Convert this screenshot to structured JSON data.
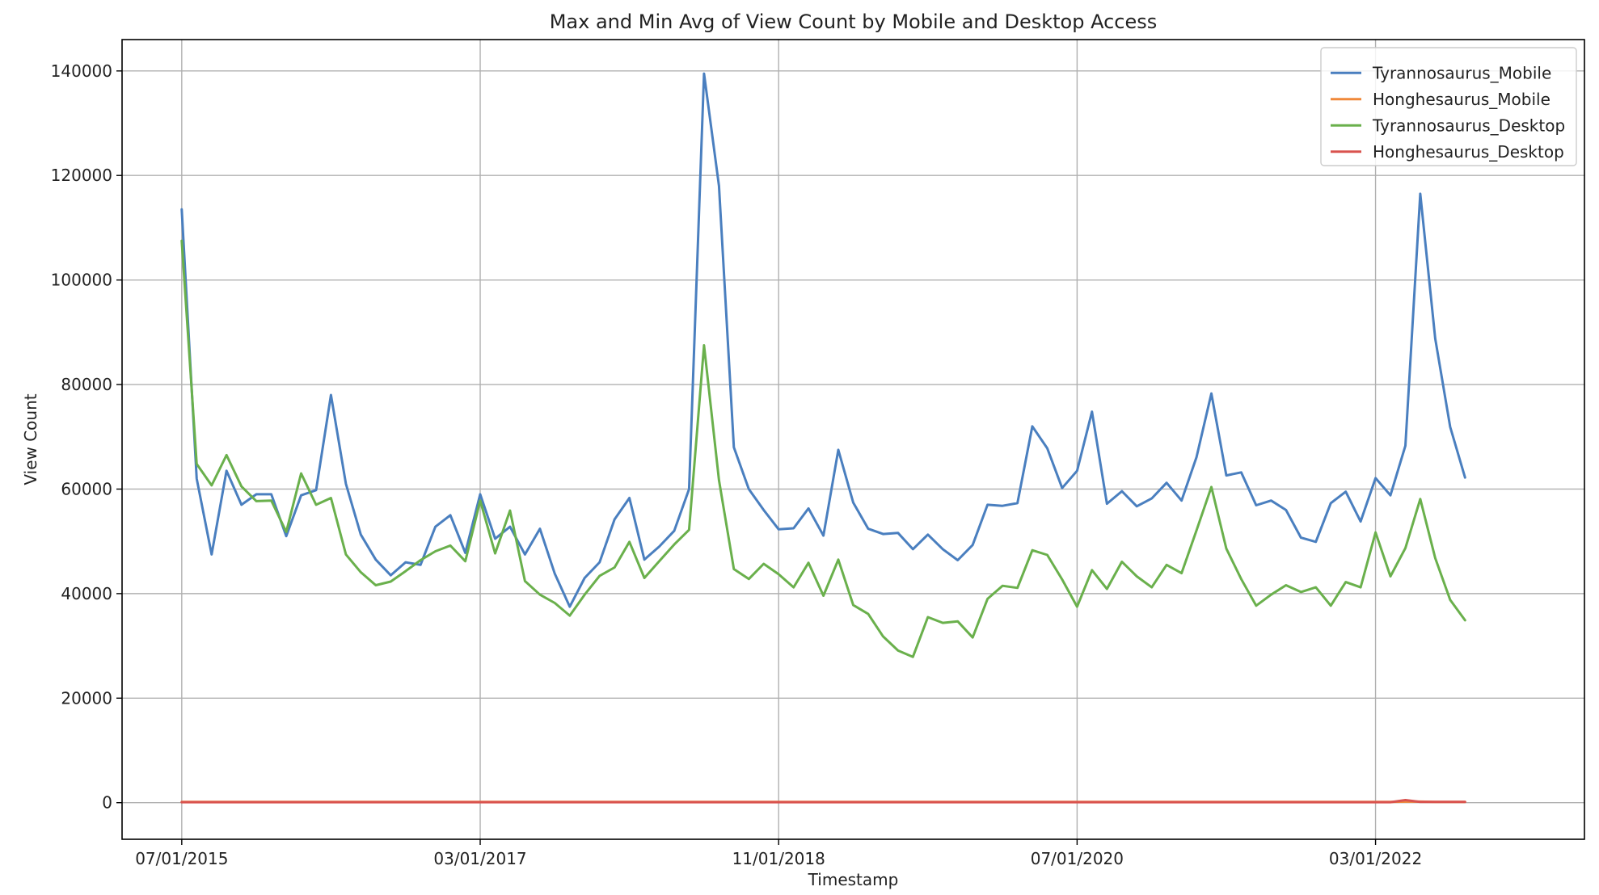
{
  "chart_data": {
    "type": "line",
    "title": "Max and Min Avg of View Count by Mobile and Desktop Access",
    "xlabel": "Timestamp",
    "ylabel": "View Count",
    "x_start": "2015-07-01",
    "x_step": "1 month",
    "x_ticks": [
      {
        "label": "07/01/2015",
        "date": "2015-07-01"
      },
      {
        "label": "03/01/2017",
        "date": "2017-03-01"
      },
      {
        "label": "11/01/2018",
        "date": "2018-11-01"
      },
      {
        "label": "07/01/2020",
        "date": "2020-07-01"
      },
      {
        "label": "03/01/2022",
        "date": "2022-03-01"
      }
    ],
    "y_ticks": [
      0,
      20000,
      40000,
      60000,
      80000,
      100000,
      120000,
      140000
    ],
    "y_tick_labels": [
      "0",
      "20000",
      "40000",
      "60000",
      "80000",
      "100000",
      "120000",
      "140000"
    ],
    "ylim": [
      -7000,
      146000
    ],
    "xlim": [
      "2015-03-01",
      "2023-05-01"
    ],
    "grid": true,
    "legend_position": "top-right",
    "series": [
      {
        "name": "Tyrannosaurus_Mobile",
        "color": "#4a7fbf",
        "values": [
          113500,
          62000,
          47500,
          63500,
          57000,
          59000,
          59000,
          51000,
          58800,
          59800,
          78000,
          61000,
          51300,
          46500,
          43500,
          46000,
          45500,
          52800,
          55000,
          47800,
          59000,
          50500,
          52800,
          47500,
          52400,
          43800,
          37500,
          43000,
          46000,
          54200,
          58300,
          46500,
          49000,
          52000,
          60000,
          139500,
          118000,
          68000,
          60000,
          56000,
          52300,
          52500,
          56300,
          51100,
          67500,
          57400,
          52400,
          51400,
          51600,
          48500,
          51300,
          48500,
          46400,
          49300,
          57000,
          56800,
          57300,
          72000,
          67800,
          60200,
          63500,
          74800,
          57200,
          59600,
          56700,
          58200,
          61200,
          57800,
          66100,
          78300,
          62600,
          63200,
          56900,
          57800,
          56000,
          50700,
          49900,
          57300,
          59500,
          53800,
          62100,
          58800,
          68300,
          116500,
          88800,
          71900,
          62200
        ]
      },
      {
        "name": "Honghesaurus_Mobile",
        "color": "#f0883a",
        "values": [
          150,
          150,
          150,
          150,
          150,
          150,
          150,
          150,
          150,
          150,
          150,
          150,
          150,
          150,
          150,
          150,
          150,
          150,
          150,
          150,
          150,
          150,
          150,
          150,
          150,
          150,
          150,
          150,
          150,
          150,
          150,
          150,
          150,
          150,
          150,
          150,
          150,
          150,
          150,
          150,
          150,
          150,
          150,
          150,
          150,
          150,
          150,
          150,
          150,
          150,
          150,
          150,
          150,
          150,
          150,
          150,
          150,
          150,
          150,
          150,
          150,
          150,
          150,
          150,
          150,
          150,
          150,
          150,
          150,
          150,
          150,
          150,
          150,
          150,
          150,
          150,
          150,
          150,
          150,
          150,
          150,
          150,
          200,
          200,
          150,
          150,
          150
        ]
      },
      {
        "name": "Tyrannosaurus_Desktop",
        "color": "#6ab04c",
        "values": [
          107500,
          64800,
          60700,
          66500,
          60500,
          57700,
          57800,
          51800,
          63000,
          57000,
          58300,
          47500,
          44100,
          41600,
          42300,
          44300,
          46400,
          48100,
          49200,
          46200,
          57800,
          47700,
          55900,
          42400,
          39800,
          38200,
          35800,
          39800,
          43400,
          45000,
          49900,
          43000,
          46200,
          49400,
          52200,
          87500,
          61700,
          44700,
          42800,
          45700,
          43700,
          41200,
          45900,
          39600,
          46500,
          37800,
          36100,
          31800,
          29100,
          27900,
          35500,
          34400,
          34700,
          31600,
          39000,
          41500,
          41100,
          48300,
          47400,
          42700,
          37500,
          44500,
          40900,
          46100,
          43300,
          41200,
          45500,
          43900,
          52100,
          60400,
          48600,
          42800,
          37700,
          39800,
          41600,
          40300,
          41200,
          37700,
          42200,
          41200,
          51700,
          43300,
          48700,
          58100,
          46800,
          38800,
          34900
        ]
      },
      {
        "name": "Honghesaurus_Desktop",
        "color": "#d9534f",
        "values": [
          100,
          100,
          100,
          100,
          100,
          100,
          100,
          100,
          100,
          100,
          100,
          100,
          100,
          100,
          100,
          100,
          100,
          100,
          100,
          100,
          100,
          100,
          100,
          100,
          100,
          100,
          100,
          100,
          100,
          100,
          100,
          100,
          100,
          100,
          100,
          100,
          100,
          100,
          100,
          100,
          100,
          100,
          100,
          100,
          100,
          100,
          100,
          100,
          100,
          100,
          100,
          100,
          100,
          100,
          100,
          100,
          100,
          100,
          100,
          100,
          100,
          100,
          100,
          100,
          100,
          100,
          100,
          100,
          100,
          100,
          100,
          100,
          100,
          100,
          100,
          100,
          100,
          100,
          100,
          100,
          100,
          100,
          500,
          150,
          150,
          150,
          150
        ]
      }
    ]
  }
}
